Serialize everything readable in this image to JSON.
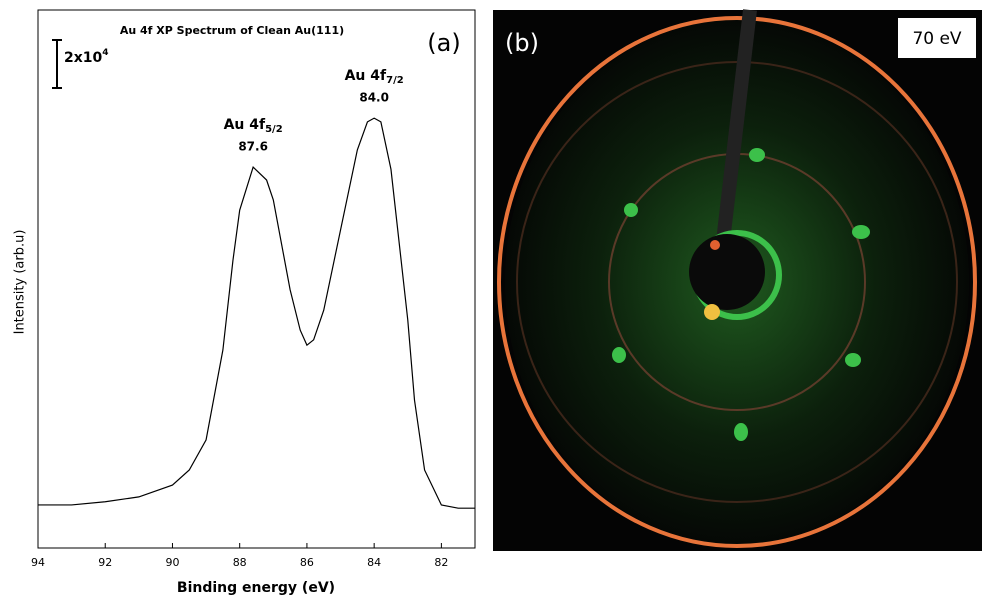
{
  "chart_data": {
    "type": "line",
    "title": "Au 4f XP Spectrum of Clean Au(111)",
    "panel_label": "(a)",
    "x_label": "Binding energy (eV)",
    "y_label": "Intensity (arb.u)",
    "scale_bar": {
      "base": "2x10",
      "exp": "4"
    },
    "x": [
      94,
      93,
      92,
      91,
      90,
      89.5,
      89,
      88.5,
      88.2,
      88,
      87.6,
      87.2,
      87,
      86.5,
      86.2,
      86,
      85.8,
      85.5,
      85,
      84.5,
      84.2,
      84,
      83.8,
      83.5,
      83,
      82.8,
      82.5,
      82,
      81.5,
      81
    ],
    "values": [
      8.0,
      8.0,
      8.6,
      9.5,
      11.7,
      14.5,
      20.1,
      36.8,
      53.5,
      62.8,
      70.8,
      68.4,
      64.7,
      48.0,
      40.5,
      37.7,
      38.7,
      44.2,
      59.1,
      74.0,
      79.2,
      79.9,
      79.2,
      70.4,
      42.4,
      27.5,
      14.5,
      8.0,
      7.4,
      7.4
    ],
    "color": "#000000",
    "xlim": [
      94,
      81
    ],
    "xticks": [
      94,
      92,
      90,
      88,
      86,
      84,
      82
    ],
    "ylim": [
      0,
      100
    ],
    "annotations": [
      {
        "text": "Au 4f",
        "sub": "5/2",
        "peak": {
          "value": 87.6,
          "label": "87.6"
        }
      },
      {
        "text": "Au 4f",
        "sub": "7/2",
        "peak": {
          "value": 84.0,
          "label": "84.0"
        }
      }
    ]
  },
  "panel_b": {
    "label": "(b)",
    "energy": "70 eV"
  }
}
